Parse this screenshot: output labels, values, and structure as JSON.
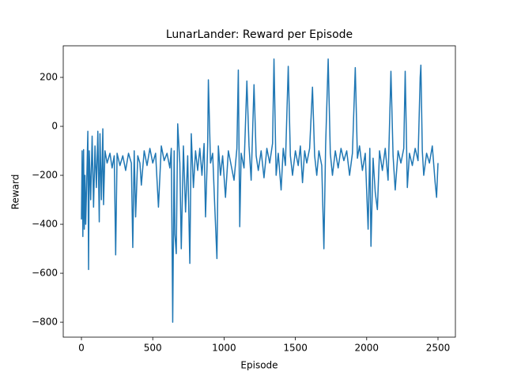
{
  "chart_data": {
    "type": "line",
    "title": "LunarLander: Reward per Episode",
    "xlabel": "Episode",
    "ylabel": "Reward",
    "color": "#1f77b4",
    "xlim": [
      -127.5,
      2622
    ],
    "ylim": [
      -861,
      329
    ],
    "xticks": [
      0,
      500,
      1000,
      1500,
      2000,
      2500
    ],
    "yticks": [
      {
        "value": -800,
        "label": "−800"
      },
      {
        "value": -600,
        "label": "−600"
      },
      {
        "value": -400,
        "label": "−400"
      },
      {
        "value": -200,
        "label": "−200"
      },
      0,
      200
    ],
    "grid": false,
    "x": [
      0,
      5,
      10,
      15,
      20,
      25,
      30,
      40,
      45,
      50,
      55,
      65,
      75,
      85,
      95,
      105,
      115,
      125,
      130,
      140,
      150,
      155,
      165,
      180,
      200,
      215,
      230,
      240,
      250,
      270,
      290,
      310,
      330,
      350,
      360,
      370,
      380,
      395,
      410,
      420,
      440,
      460,
      480,
      500,
      520,
      540,
      560,
      580,
      600,
      620,
      630,
      640,
      650,
      655,
      665,
      675,
      690,
      700,
      715,
      730,
      745,
      760,
      770,
      785,
      800,
      815,
      830,
      845,
      860,
      870,
      885,
      890,
      905,
      920,
      935,
      950,
      960,
      975,
      990,
      1010,
      1030,
      1050,
      1070,
      1090,
      1100,
      1110,
      1120,
      1140,
      1160,
      1175,
      1190,
      1210,
      1225,
      1240,
      1260,
      1280,
      1300,
      1320,
      1340,
      1350,
      1365,
      1380,
      1400,
      1415,
      1430,
      1450,
      1465,
      1480,
      1500,
      1520,
      1535,
      1550,
      1565,
      1580,
      1600,
      1620,
      1635,
      1650,
      1665,
      1685,
      1700,
      1712,
      1730,
      1745,
      1760,
      1780,
      1800,
      1820,
      1840,
      1860,
      1880,
      1900,
      1920,
      1935,
      1950,
      1970,
      1990,
      2010,
      2022,
      2030,
      2045,
      2060,
      2075,
      2090,
      2110,
      2130,
      2150,
      2170,
      2185,
      2200,
      2220,
      2240,
      2260,
      2270,
      2285,
      2300,
      2320,
      2340,
      2360,
      2375,
      2380,
      2390,
      2400,
      2420,
      2440,
      2460,
      2480,
      2490,
      2500
    ],
    "values": [
      -380,
      -100,
      -450,
      -95,
      -420,
      -200,
      -400,
      -150,
      -20,
      -585,
      -100,
      -300,
      -40,
      -330,
      -80,
      -250,
      -20,
      -390,
      -30,
      -300,
      -10,
      -320,
      -100,
      -150,
      -110,
      -170,
      -120,
      -525,
      -110,
      -160,
      -120,
      -180,
      -110,
      -150,
      -495,
      -100,
      -370,
      -120,
      -150,
      -240,
      -100,
      -160,
      -90,
      -150,
      -110,
      -330,
      -80,
      -140,
      -110,
      -170,
      -90,
      -800,
      -100,
      -440,
      -520,
      10,
      -150,
      -500,
      -80,
      -350,
      -120,
      -560,
      -30,
      -250,
      -100,
      -180,
      -90,
      -200,
      -70,
      -370,
      -80,
      190,
      -150,
      -110,
      -330,
      -540,
      -80,
      -200,
      -120,
      -290,
      -100,
      -160,
      -220,
      -90,
      230,
      -410,
      -110,
      -170,
      185,
      -80,
      -220,
      170,
      -120,
      -180,
      -100,
      -210,
      -90,
      -150,
      -70,
      275,
      -200,
      -110,
      -260,
      -90,
      -160,
      245,
      -120,
      -200,
      -100,
      -160,
      -80,
      -230,
      -100,
      -150,
      -90,
      160,
      -120,
      -200,
      -100,
      -160,
      -500,
      -80,
      275,
      -110,
      -200,
      -100,
      -170,
      -90,
      -140,
      -100,
      -200,
      -110,
      240,
      -130,
      -80,
      -180,
      -110,
      -420,
      -90,
      -490,
      -130,
      -270,
      -340,
      -100,
      -180,
      -90,
      -220,
      225,
      -120,
      -260,
      -100,
      -150,
      -90,
      225,
      -250,
      -110,
      -160,
      -90,
      -140,
      200,
      250,
      -100,
      -200,
      -110,
      -150,
      -80,
      -230,
      -290,
      -150
    ]
  }
}
